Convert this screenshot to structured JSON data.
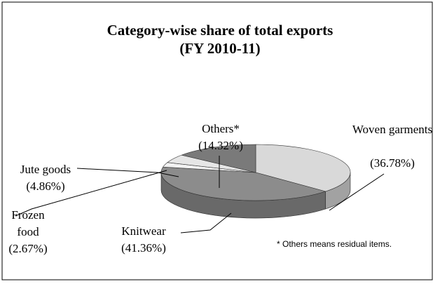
{
  "chart_data": {
    "type": "pie",
    "title": "Category-wise share of total exports",
    "subtitle": "(FY  2010-11)",
    "categories": [
      "Woven garments",
      "Knitwear",
      "Frozen food",
      "Jute goods",
      "Others*"
    ],
    "values": [
      36.78,
      41.36,
      2.67,
      4.86,
      14.32
    ],
    "value_labels": [
      "(36.78%)",
      "(41.36%)",
      "(2.67%)",
      "(4.86%)",
      "(14.32%)"
    ],
    "colors": [
      "#d9d9d9",
      "#8c8c8c",
      "#f2f2f2",
      "#e6e6e6",
      "#7a7a7a"
    ],
    "note": "* Others means residual items."
  }
}
